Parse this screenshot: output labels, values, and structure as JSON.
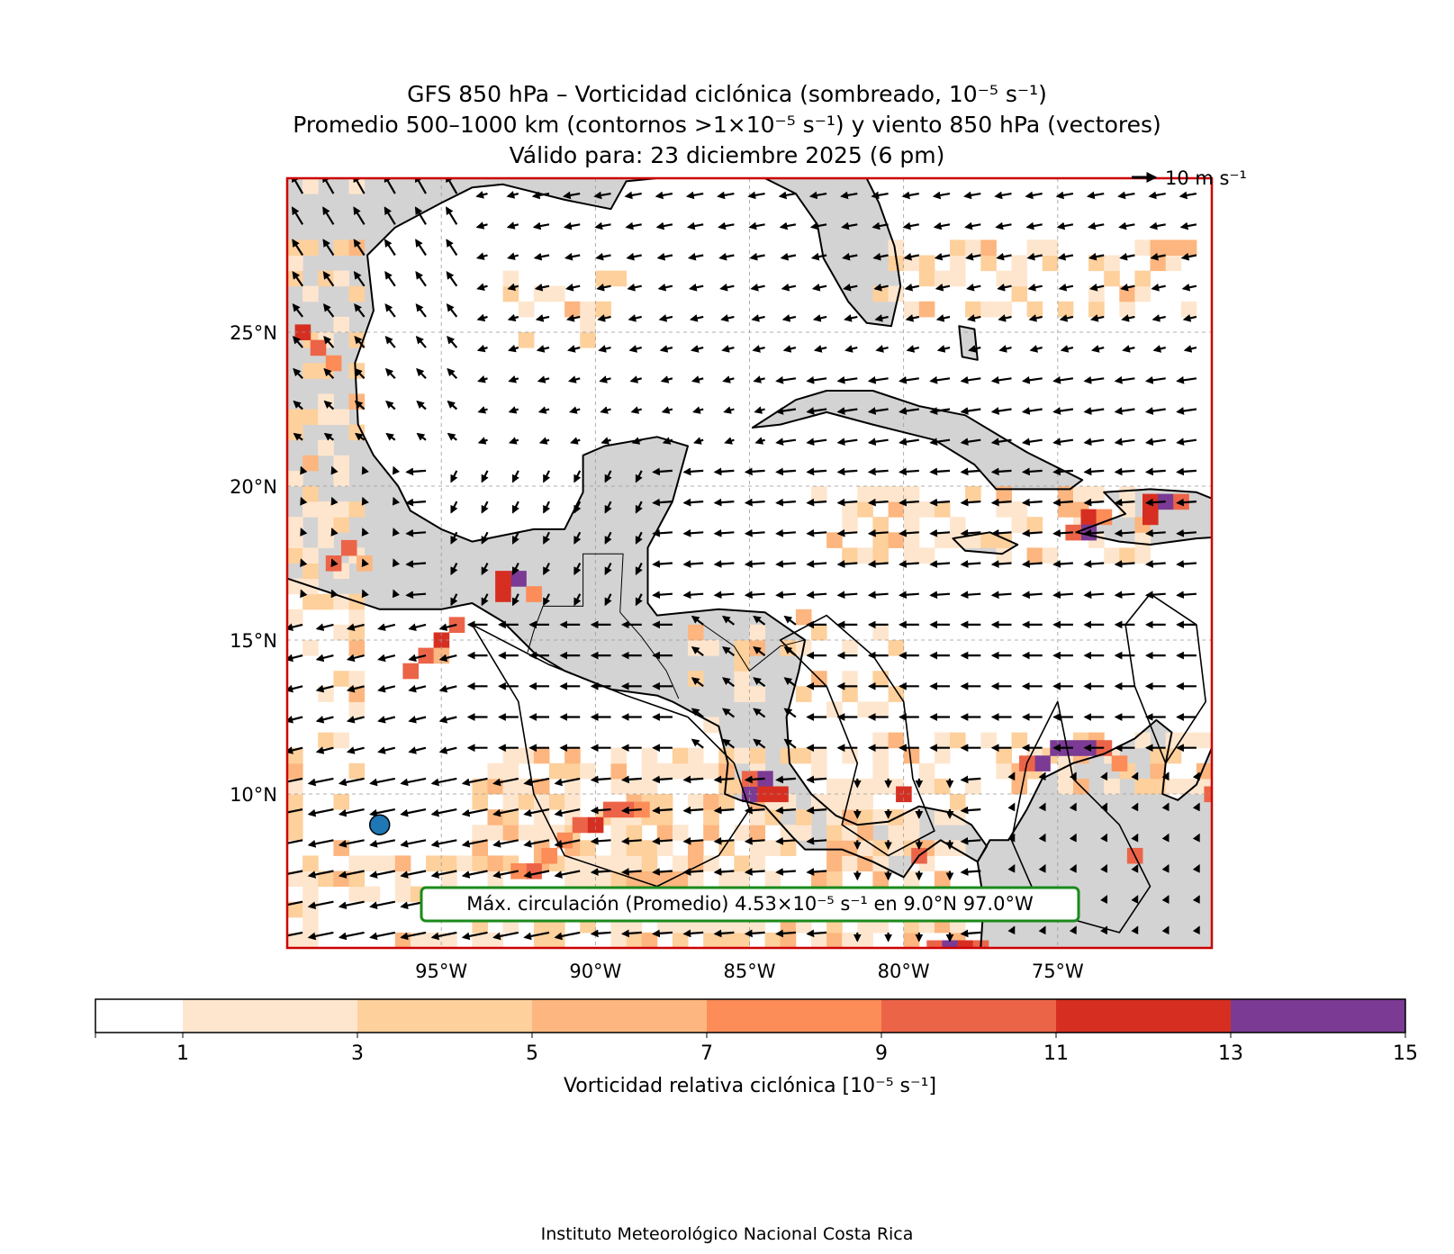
{
  "title": {
    "line1": "GFS 850 hPa – Vorticidad ciclónica (sombreado, 10⁻⁵ s⁻¹)",
    "line2": "Promedio 500–1000 km (contornos >1×10⁻⁵ s⁻¹) y viento 850 hPa (vectores)",
    "line3": "Válido para: 23 diciembre 2025 (6 pm)"
  },
  "map": {
    "lon_range": [
      -100,
      -70
    ],
    "lat_range": [
      5,
      30
    ],
    "lat_ticks": [
      {
        "value": 10,
        "label": "10°N"
      },
      {
        "value": 15,
        "label": "15°N"
      },
      {
        "value": 20,
        "label": "20°N"
      },
      {
        "value": 25,
        "label": "25°N"
      }
    ],
    "lon_ticks": [
      {
        "value": -95,
        "label": "95°W"
      },
      {
        "value": -90,
        "label": "90°W"
      },
      {
        "value": -85,
        "label": "85°W"
      },
      {
        "value": -80,
        "label": "80°W"
      },
      {
        "value": -75,
        "label": "75°W"
      }
    ],
    "frame_color": "#cc0000",
    "land_color": "#d3d3d3",
    "wind_reference": {
      "label": "10 m s⁻¹"
    },
    "max_marker": {
      "lon": -97.0,
      "lat": 9.0,
      "color": "#1f77b4"
    },
    "annotation": {
      "text": "Máx. circulación (Promedio) 4.53×10⁻⁵ s⁻¹ en 9.0°N 97.0°W",
      "border_color": "#1a8a1a"
    },
    "vorticity_cells": [
      {
        "lon": -99.5,
        "lat": 25,
        "v": 12
      },
      {
        "lon": -99,
        "lat": 24.5,
        "v": 10
      },
      {
        "lon": -98.5,
        "lat": 24,
        "v": 8
      },
      {
        "lon": -98,
        "lat": 18,
        "v": 10
      },
      {
        "lon": -98.5,
        "lat": 17.5,
        "v": 9
      },
      {
        "lon": -97.5,
        "lat": 17.5,
        "v": 6
      },
      {
        "lon": -94.5,
        "lat": 15.5,
        "v": 10
      },
      {
        "lon": -95,
        "lat": 15,
        "v": 12
      },
      {
        "lon": -95.5,
        "lat": 14.5,
        "v": 10
      },
      {
        "lon": -96,
        "lat": 14,
        "v": 9
      },
      {
        "lon": -95,
        "lat": 14.5,
        "v": 6
      },
      {
        "lon": -93,
        "lat": 16.5,
        "v": 12
      },
      {
        "lon": -92.5,
        "lat": 17,
        "v": 14
      },
      {
        "lon": -93,
        "lat": 17,
        "v": 11
      },
      {
        "lon": -92,
        "lat": 16.5,
        "v": 8
      },
      {
        "lon": -90.5,
        "lat": 9,
        "v": 9
      },
      {
        "lon": -90,
        "lat": 9,
        "v": 11
      },
      {
        "lon": -89.5,
        "lat": 9.5,
        "v": 9
      },
      {
        "lon": -89,
        "lat": 9.5,
        "v": 9
      },
      {
        "lon": -88.5,
        "lat": 9.5,
        "v": 8
      },
      {
        "lon": -91,
        "lat": 8.5,
        "v": 8
      },
      {
        "lon": -92,
        "lat": 7.5,
        "v": 9
      },
      {
        "lon": -92.5,
        "lat": 7.5,
        "v": 8
      },
      {
        "lon": -91.5,
        "lat": 8,
        "v": 7
      },
      {
        "lon": -85,
        "lat": 10,
        "v": 14
      },
      {
        "lon": -84.5,
        "lat": 10.5,
        "v": 14
      },
      {
        "lon": -84,
        "lat": 10,
        "v": 12
      },
      {
        "lon": -85,
        "lat": 10.5,
        "v": 10
      },
      {
        "lon": -84.5,
        "lat": 10,
        "v": 11
      },
      {
        "lon": -75.5,
        "lat": 11,
        "v": 14
      },
      {
        "lon": -74.5,
        "lat": 11.5,
        "v": 14
      },
      {
        "lon": -75,
        "lat": 11.5,
        "v": 14
      },
      {
        "lon": -74,
        "lat": 11.5,
        "v": 14
      },
      {
        "lon": -76,
        "lat": 11,
        "v": 10
      },
      {
        "lon": -73.5,
        "lat": 11.5,
        "v": 9
      },
      {
        "lon": -73,
        "lat": 11,
        "v": 8
      },
      {
        "lon": -72,
        "lat": 19.5,
        "v": 12
      },
      {
        "lon": -71.5,
        "lat": 19.5,
        "v": 14
      },
      {
        "lon": -72,
        "lat": 19,
        "v": 12
      },
      {
        "lon": -71,
        "lat": 19.5,
        "v": 9
      },
      {
        "lon": -74,
        "lat": 19,
        "v": 11
      },
      {
        "lon": -74,
        "lat": 18.5,
        "v": 14
      },
      {
        "lon": -74.5,
        "lat": 18.5,
        "v": 9
      },
      {
        "lon": -73.5,
        "lat": 19,
        "v": 8
      },
      {
        "lon": -79,
        "lat": 5,
        "v": 10
      },
      {
        "lon": -78.5,
        "lat": 5,
        "v": 14
      },
      {
        "lon": -78,
        "lat": 5,
        "v": 12
      },
      {
        "lon": -77.5,
        "lat": 5,
        "v": 10
      },
      {
        "lon": -80,
        "lat": 10,
        "v": 12
      },
      {
        "lon": -79.5,
        "lat": 8,
        "v": 9
      },
      {
        "lon": -72.5,
        "lat": 8,
        "v": 10
      },
      {
        "lon": -70,
        "lat": 10,
        "v": 9
      }
    ]
  },
  "colorbar": {
    "label": "Vorticidad relativa ciclónica [10⁻⁵ s⁻¹]",
    "levels": [
      0,
      1,
      3,
      5,
      7,
      9,
      11,
      13,
      15
    ],
    "tick_labels": [
      "1",
      "3",
      "5",
      "7",
      "9",
      "11",
      "13",
      "15"
    ],
    "colors": [
      "#ffffff",
      "#fee6ce",
      "#fdd09c",
      "#fdb67f",
      "#fc8c58",
      "#ec6448",
      "#d62f21",
      "#7b3a93"
    ]
  },
  "footer": "Instituto Meteorológico Nacional Costa Rica"
}
